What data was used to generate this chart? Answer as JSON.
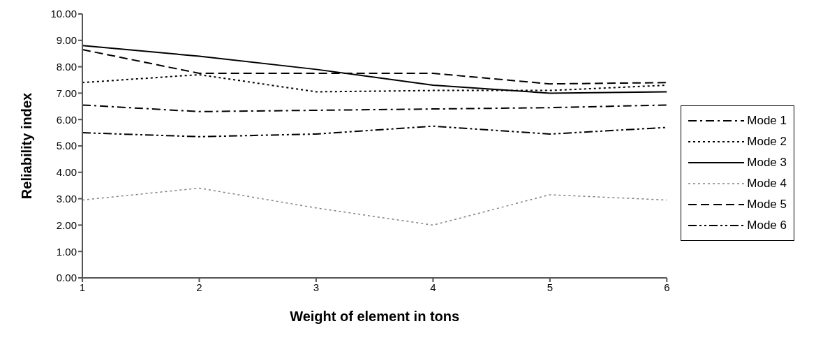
{
  "chart_data": {
    "type": "line",
    "xlabel": "Weight of element in tons",
    "ylabel": "Reliability index",
    "x": [
      1,
      2,
      3,
      4,
      5,
      6
    ],
    "xlim": [
      1,
      6
    ],
    "xticks": [
      1,
      2,
      3,
      4,
      5,
      6
    ],
    "ylim": [
      0,
      10
    ],
    "yticks": [
      {
        "value": 0,
        "label": "0.00"
      },
      {
        "value": 1,
        "label": "1.00"
      },
      {
        "value": 2,
        "label": "2.00"
      },
      {
        "value": 3,
        "label": "3.00"
      },
      {
        "value": 4,
        "label": "4.00"
      },
      {
        "value": 5,
        "label": "5.00"
      },
      {
        "value": 6,
        "label": "6.00"
      },
      {
        "value": 7,
        "label": "7.00"
      },
      {
        "value": 8,
        "label": "8.00"
      },
      {
        "value": 9,
        "label": "9.00"
      },
      {
        "value": 10,
        "label": "10.00"
      }
    ],
    "legend": "right",
    "marker": "none",
    "series": [
      {
        "name": "Mode 1",
        "color": "#000000",
        "line_style": "dashdot",
        "values": [
          6.55,
          6.3,
          6.35,
          6.4,
          6.45,
          6.55
        ]
      },
      {
        "name": "Mode 2",
        "color": "#000000",
        "line_style": "dotted",
        "values": [
          7.4,
          7.7,
          7.05,
          7.1,
          7.1,
          7.3
        ]
      },
      {
        "name": "Mode 3",
        "color": "#000000",
        "line_style": "solid",
        "values": [
          8.8,
          8.4,
          7.9,
          7.3,
          7.0,
          7.05
        ]
      },
      {
        "name": "Mode 4",
        "color": "#808080",
        "line_style": "dotted",
        "values": [
          2.95,
          3.4,
          2.65,
          2.0,
          3.15,
          2.95
        ]
      },
      {
        "name": "Mode 5",
        "color": "#000000",
        "line_style": "dashed",
        "values": [
          8.65,
          7.75,
          7.75,
          7.75,
          7.35,
          7.4
        ]
      },
      {
        "name": "Mode 6",
        "color": "#000000",
        "line_style": "dashdotdot",
        "values": [
          5.5,
          5.35,
          5.45,
          5.75,
          5.45,
          5.7
        ]
      }
    ]
  }
}
